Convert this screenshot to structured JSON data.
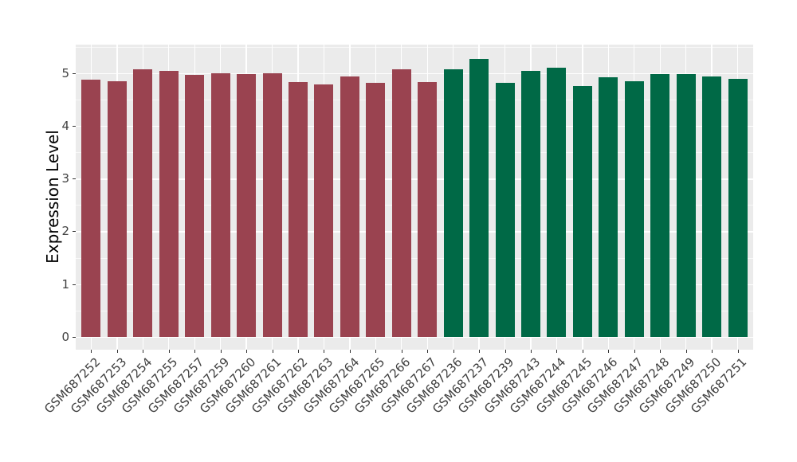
{
  "figure": {
    "background": "#FFFFFF",
    "panel_background": "#EBEBEB",
    "gridline_color": "#FFFFFF",
    "axis_text_color": "#404040",
    "tick_mark_color": "#333333"
  },
  "chart_data": {
    "type": "bar",
    "title": "",
    "xlabel": "",
    "ylabel": "Expression Level",
    "ylim": [
      0,
      5.54
    ],
    "yticks": [
      0,
      1,
      2,
      3,
      4,
      5
    ],
    "grid": "horizontal major at integers and minor at halves, vertical major at category centers, white on grey panel (ggplot style)",
    "legend": "none",
    "x_tick_label_rotation_deg": 45,
    "groups": [
      {
        "name": "red-group",
        "color": "#9A4350"
      },
      {
        "name": "green-group",
        "color": "#006946"
      }
    ],
    "bars": [
      {
        "label": "GSM687252",
        "value": 4.87,
        "group": 0
      },
      {
        "label": "GSM687253",
        "value": 4.84,
        "group": 0
      },
      {
        "label": "GSM687254",
        "value": 5.08,
        "group": 0
      },
      {
        "label": "GSM687255",
        "value": 5.04,
        "group": 0
      },
      {
        "label": "GSM687257",
        "value": 4.96,
        "group": 0
      },
      {
        "label": "GSM687259",
        "value": 5.0,
        "group": 0
      },
      {
        "label": "GSM687260",
        "value": 4.98,
        "group": 0
      },
      {
        "label": "GSM687261",
        "value": 4.99,
        "group": 0
      },
      {
        "label": "GSM687262",
        "value": 4.83,
        "group": 0
      },
      {
        "label": "GSM687263",
        "value": 4.79,
        "group": 0
      },
      {
        "label": "GSM687264",
        "value": 4.94,
        "group": 0
      },
      {
        "label": "GSM687265",
        "value": 4.81,
        "group": 0
      },
      {
        "label": "GSM687266",
        "value": 5.07,
        "group": 0
      },
      {
        "label": "GSM687267",
        "value": 4.83,
        "group": 0
      },
      {
        "label": "GSM687236",
        "value": 5.08,
        "group": 1
      },
      {
        "label": "GSM687237",
        "value": 5.27,
        "group": 1
      },
      {
        "label": "GSM687239",
        "value": 4.82,
        "group": 1
      },
      {
        "label": "GSM687243",
        "value": 5.04,
        "group": 1
      },
      {
        "label": "GSM687244",
        "value": 5.11,
        "group": 1
      },
      {
        "label": "GSM687245",
        "value": 4.75,
        "group": 1
      },
      {
        "label": "GSM687246",
        "value": 4.92,
        "group": 1
      },
      {
        "label": "GSM687247",
        "value": 4.85,
        "group": 1
      },
      {
        "label": "GSM687248",
        "value": 4.98,
        "group": 1
      },
      {
        "label": "GSM687249",
        "value": 4.98,
        "group": 1
      },
      {
        "label": "GSM687250",
        "value": 4.94,
        "group": 1
      },
      {
        "label": "GSM687251",
        "value": 4.89,
        "group": 1
      }
    ]
  }
}
